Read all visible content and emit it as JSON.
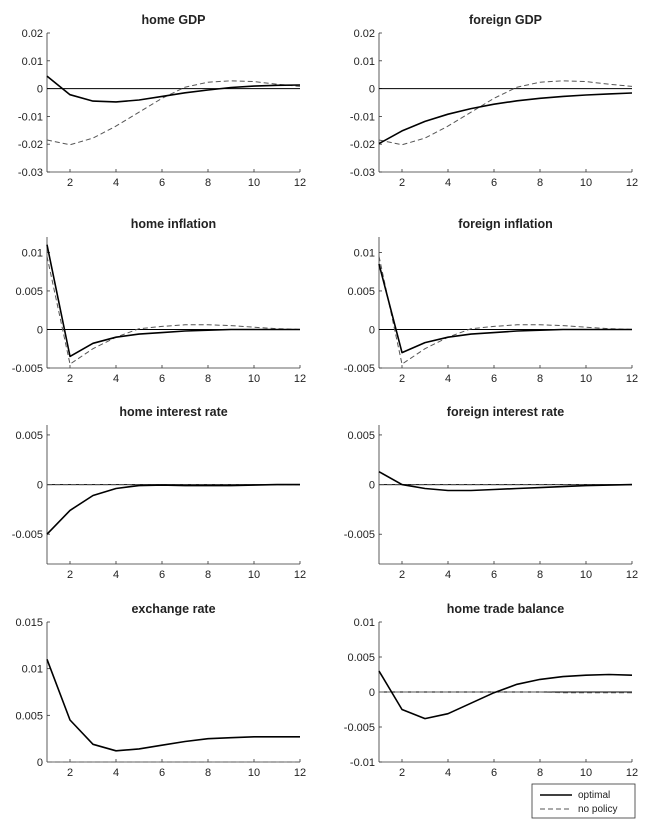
{
  "chart_data": [
    {
      "type": "line",
      "title": "home GDP",
      "xlim": [
        1,
        12
      ],
      "ylim": [
        -0.03,
        0.02
      ],
      "xticks": [
        2,
        4,
        6,
        8,
        10,
        12
      ],
      "yticks": [
        -0.03,
        -0.02,
        -0.01,
        0,
        0.01,
        0.02
      ],
      "ytick_labels": [
        "-0.03",
        "-0.02",
        "-0.01",
        "0",
        "0.01",
        "0.02"
      ],
      "x": [
        1,
        2,
        3,
        4,
        5,
        6,
        7,
        8,
        9,
        10,
        11,
        12
      ],
      "series": [
        {
          "name": "optimal",
          "style": "solid",
          "values": [
            0.0045,
            -0.0022,
            -0.0045,
            -0.0048,
            -0.0041,
            -0.0028,
            -0.0015,
            -0.0005,
            0.0004,
            0.0009,
            0.0012,
            0.0013
          ]
        },
        {
          "name": "no policy",
          "style": "dashed",
          "values": [
            -0.0185,
            -0.0202,
            -0.0178,
            -0.0135,
            -0.0085,
            -0.0035,
            0.0005,
            0.0023,
            0.0028,
            0.0025,
            0.0016,
            0.0008
          ]
        }
      ]
    },
    {
      "type": "line",
      "title": "foreign GDP",
      "xlim": [
        1,
        12
      ],
      "ylim": [
        -0.03,
        0.02
      ],
      "xticks": [
        2,
        4,
        6,
        8,
        10,
        12
      ],
      "yticks": [
        -0.03,
        -0.02,
        -0.01,
        0,
        0.01,
        0.02
      ],
      "ytick_labels": [
        "-0.03",
        "-0.02",
        "-0.01",
        "0",
        "0.01",
        "0.02"
      ],
      "x": [
        1,
        2,
        3,
        4,
        5,
        6,
        7,
        8,
        9,
        10,
        11,
        12
      ],
      "series": [
        {
          "name": "optimal",
          "style": "solid",
          "values": [
            -0.0198,
            -0.0152,
            -0.0118,
            -0.0092,
            -0.0072,
            -0.0056,
            -0.0044,
            -0.0035,
            -0.0028,
            -0.0023,
            -0.0019,
            -0.0016
          ]
        },
        {
          "name": "no policy",
          "style": "dashed",
          "values": [
            -0.0185,
            -0.0202,
            -0.0178,
            -0.0135,
            -0.0085,
            -0.0035,
            0.0005,
            0.0023,
            0.0028,
            0.0025,
            0.0016,
            0.0008
          ]
        }
      ]
    },
    {
      "type": "line",
      "title": "home inflation",
      "xlim": [
        1,
        12
      ],
      "ylim": [
        -0.005,
        0.012
      ],
      "xticks": [
        2,
        4,
        6,
        8,
        10,
        12
      ],
      "yticks": [
        -0.005,
        0,
        0.005,
        0.01
      ],
      "ytick_labels": [
        "-0.005",
        "0",
        "0.005",
        "0.01"
      ],
      "x": [
        1,
        2,
        3,
        4,
        5,
        6,
        7,
        8,
        9,
        10,
        11,
        12
      ],
      "series": [
        {
          "name": "optimal",
          "style": "solid",
          "values": [
            0.011,
            -0.0035,
            -0.0018,
            -0.001,
            -0.0006,
            -0.0004,
            -0.0002,
            -0.0001,
            0,
            0,
            0,
            0
          ]
        },
        {
          "name": "no policy",
          "style": "dashed",
          "values": [
            0.0095,
            -0.0045,
            -0.0025,
            -0.001,
            0.0001,
            0.0004,
            0.0006,
            0.0006,
            0.0005,
            0.0003,
            0.0001,
            0
          ]
        }
      ]
    },
    {
      "type": "line",
      "title": "foreign inflation",
      "xlim": [
        1,
        12
      ],
      "ylim": [
        -0.005,
        0.012
      ],
      "xticks": [
        2,
        4,
        6,
        8,
        10,
        12
      ],
      "yticks": [
        -0.005,
        0,
        0.005,
        0.01
      ],
      "ytick_labels": [
        "-0.005",
        "0",
        "0.005",
        "0.01"
      ],
      "x": [
        1,
        2,
        3,
        4,
        5,
        6,
        7,
        8,
        9,
        10,
        11,
        12
      ],
      "series": [
        {
          "name": "optimal",
          "style": "solid",
          "values": [
            0.0085,
            -0.003,
            -0.0017,
            -0.001,
            -0.0006,
            -0.0004,
            -0.0002,
            -0.0001,
            0,
            0,
            0,
            0
          ]
        },
        {
          "name": "no policy",
          "style": "dashed",
          "values": [
            0.0095,
            -0.0045,
            -0.0025,
            -0.001,
            0.0001,
            0.0004,
            0.0006,
            0.0006,
            0.0005,
            0.0003,
            0.0001,
            0
          ]
        }
      ]
    },
    {
      "type": "line",
      "title": "home interest rate",
      "xlim": [
        1,
        12
      ],
      "ylim": [
        -0.008,
        0.006
      ],
      "xticks": [
        2,
        4,
        6,
        8,
        10,
        12
      ],
      "yticks": [
        -0.005,
        0,
        0.005
      ],
      "ytick_labels": [
        "-0.005",
        "0",
        "0.005"
      ],
      "x": [
        1,
        2,
        3,
        4,
        5,
        6,
        7,
        8,
        9,
        10,
        11,
        12
      ],
      "series": [
        {
          "name": "optimal",
          "style": "solid",
          "values": [
            -0.005,
            -0.0026,
            -0.0011,
            -0.0004,
            -0.0001,
            -5e-05,
            -0.0001,
            -0.0001,
            -0.0001,
            -5e-05,
            0,
            0
          ]
        },
        {
          "name": "no policy",
          "style": "dashed",
          "values": [
            0,
            0,
            0,
            0,
            0,
            0,
            0,
            0,
            0,
            0,
            0,
            0
          ]
        }
      ]
    },
    {
      "type": "line",
      "title": "foreign interest rate",
      "xlim": [
        1,
        12
      ],
      "ylim": [
        -0.008,
        0.006
      ],
      "xticks": [
        2,
        4,
        6,
        8,
        10,
        12
      ],
      "yticks": [
        -0.005,
        0,
        0.005
      ],
      "ytick_labels": [
        "-0.005",
        "0",
        "0.005"
      ],
      "x": [
        1,
        2,
        3,
        4,
        5,
        6,
        7,
        8,
        9,
        10,
        11,
        12
      ],
      "series": [
        {
          "name": "optimal",
          "style": "solid",
          "values": [
            0.0013,
            0,
            -0.0004,
            -0.0006,
            -0.0006,
            -0.0005,
            -0.0004,
            -0.0003,
            -0.0002,
            -0.0001,
            -5e-05,
            0
          ]
        },
        {
          "name": "no policy",
          "style": "dashed",
          "values": [
            0,
            0,
            0,
            0,
            0,
            0,
            0,
            0,
            0,
            0,
            0,
            0
          ]
        }
      ]
    },
    {
      "type": "line",
      "title": "exchange rate",
      "xlim": [
        1,
        12
      ],
      "ylim": [
        0,
        0.015
      ],
      "xticks": [
        2,
        4,
        6,
        8,
        10,
        12
      ],
      "yticks": [
        0,
        0.005,
        0.01,
        0.015
      ],
      "ytick_labels": [
        "0",
        "0.005",
        "0.01",
        "0.015"
      ],
      "x": [
        1,
        2,
        3,
        4,
        5,
        6,
        7,
        8,
        9,
        10,
        11,
        12
      ],
      "series": [
        {
          "name": "optimal",
          "style": "solid",
          "values": [
            0.011,
            0.0045,
            0.0019,
            0.0012,
            0.0014,
            0.0018,
            0.0022,
            0.0025,
            0.0026,
            0.0027,
            0.0027,
            0.0027
          ]
        },
        {
          "name": "no policy",
          "style": "dashed",
          "values": [
            0,
            0,
            0,
            0,
            0,
            0,
            0,
            0,
            0,
            0,
            0,
            0
          ]
        }
      ]
    },
    {
      "type": "line",
      "title": "home trade balance",
      "xlim": [
        1,
        12
      ],
      "ylim": [
        -0.01,
        0.01
      ],
      "xticks": [
        2,
        4,
        6,
        8,
        10,
        12
      ],
      "yticks": [
        -0.01,
        -0.005,
        0,
        0.005,
        0.01
      ],
      "ytick_labels": [
        "-0.01",
        "-0.005",
        "0",
        "0.005",
        "0.01"
      ],
      "x": [
        1,
        2,
        3,
        4,
        5,
        6,
        7,
        8,
        9,
        10,
        11,
        12
      ],
      "series": [
        {
          "name": "optimal",
          "style": "solid",
          "values": [
            0.003,
            -0.0025,
            -0.0038,
            -0.0031,
            -0.0016,
            -0.0001,
            0.0011,
            0.0018,
            0.0022,
            0.0024,
            0.0025,
            0.0024
          ]
        },
        {
          "name": "no policy",
          "style": "dashed",
          "values": [
            0,
            0,
            0,
            0,
            0,
            0,
            0,
            0,
            -0.0001,
            -0.0001,
            -0.0001,
            -0.0001
          ]
        }
      ]
    }
  ],
  "legend": {
    "placement": "bottom-right",
    "items": [
      {
        "label": "optimal",
        "style": "solid"
      },
      {
        "label": "no policy",
        "style": "dashed"
      }
    ]
  }
}
